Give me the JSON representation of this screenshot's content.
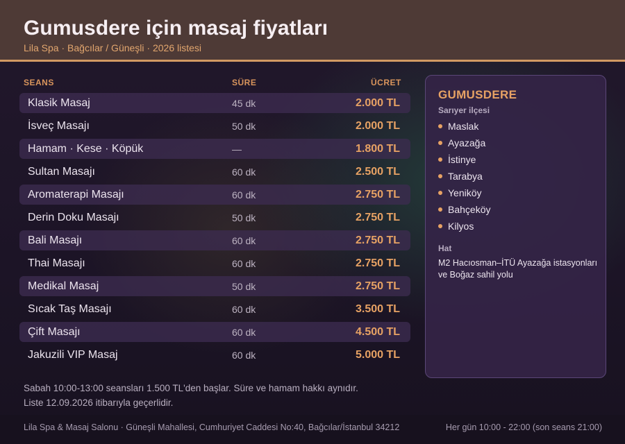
{
  "header": {
    "title": "Gumusdere için masaj fiyatları",
    "subtitle": "Lila Spa · Bağcılar / Güneşli · 2026 listesi"
  },
  "table": {
    "columns": [
      "SEANS",
      "SÜRE",
      "ÜCRET"
    ],
    "rows": [
      {
        "name": "Klasik Masaj",
        "duration": "45 dk",
        "price": "2.000 TL"
      },
      {
        "name": "İsveç Masajı",
        "duration": "50 dk",
        "price": "2.000 TL"
      },
      {
        "name": "Hamam · Kese · Köpük",
        "duration": "—",
        "price": "1.800 TL"
      },
      {
        "name": "Sultan Masajı",
        "duration": "60 dk",
        "price": "2.500 TL"
      },
      {
        "name": "Aromaterapi Masajı",
        "duration": "60 dk",
        "price": "2.750 TL"
      },
      {
        "name": "Derin Doku Masajı",
        "duration": "50 dk",
        "price": "2.750 TL"
      },
      {
        "name": "Bali Masajı",
        "duration": "60 dk",
        "price": "2.750 TL"
      },
      {
        "name": "Thai Masajı",
        "duration": "60 dk",
        "price": "2.750 TL"
      },
      {
        "name": "Medikal Masaj",
        "duration": "50 dk",
        "price": "2.750 TL"
      },
      {
        "name": "Sıcak Taş Masajı",
        "duration": "60 dk",
        "price": "3.500 TL"
      },
      {
        "name": "Çift Masajı",
        "duration": "60 dk",
        "price": "4.500 TL"
      },
      {
        "name": "Jakuzili VIP Masaj",
        "duration": "60 dk",
        "price": "5.000 TL"
      }
    ]
  },
  "panel": {
    "title": "GUMUSDERE",
    "subtitle": "Sarıyer ilçesi",
    "districts": [
      "Maslak",
      "Ayazağa",
      "İstinye",
      "Tarabya",
      "Yeniköy",
      "Bahçeköy",
      "Kilyos"
    ],
    "line_label": "Hat",
    "line_text": "M2 Hacıosman–İTÜ Ayazağa istasyonları ve Boğaz sahil yolu"
  },
  "notes": {
    "line1": "Sabah 10:00-13:00 seansları 1.500 TL'den başlar. Süre ve hamam hakkı aynıdır.",
    "line2": "Liste 12.09.2026 itibarıyla geçerlidir."
  },
  "footer": {
    "address": "Lila Spa & Masaj Salonu · Güneşli Mahallesi, Cumhuriyet Caddesi No:40, Bağcılar/İstanbul 34212",
    "hours": "Her gün 10:00 - 22:00 (son seans 21:00)"
  },
  "colors": {
    "accent": "#e7a264",
    "header_bg": "#4e3a36",
    "panel_bg": "#342446",
    "row_shade": "#3c2c50"
  }
}
